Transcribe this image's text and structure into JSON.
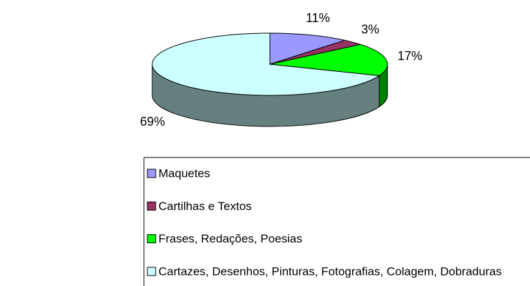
{
  "chart_data": {
    "type": "pie3d",
    "categories": [
      "Maquetes",
      "Cartilhas e Textos",
      "Frases, Redações, Poesias",
      "Cartazes, Desenhos, Pinturas, Fotografias, Colagem, Dobraduras"
    ],
    "values": [
      11,
      3,
      17,
      69
    ],
    "value_labels": [
      "11%",
      "3%",
      "17%",
      "69%"
    ],
    "colors": [
      "#9999ff",
      "#993366",
      "#00ff00",
      "#ccffff"
    ],
    "legend": "bottom"
  }
}
